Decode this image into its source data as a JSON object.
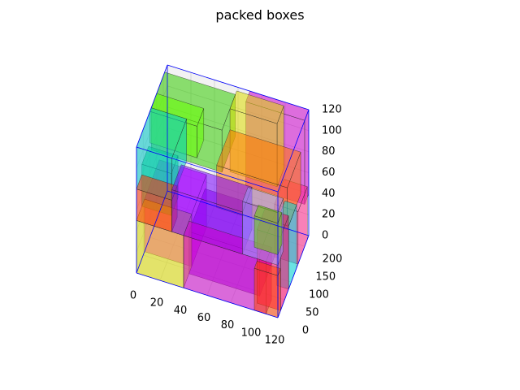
{
  "chart_data": {
    "type": "3d-boxes",
    "title": "packed boxes",
    "axes": {
      "x": {
        "range": [
          0,
          120
        ],
        "ticks": [
          0,
          20,
          40,
          60,
          80,
          100,
          120
        ]
      },
      "y": {
        "range": [
          0,
          230
        ],
        "ticks": [
          0,
          50,
          100,
          150,
          200
        ]
      },
      "z": {
        "range": [
          0,
          120
        ],
        "ticks": [
          0,
          20,
          40,
          60,
          80,
          100,
          120
        ]
      }
    },
    "container": {
      "size": [
        120,
        230,
        120
      ],
      "edge_color": "#0000ff"
    },
    "grid": true,
    "boxes": [
      {
        "origin": [
          0,
          0,
          0
        ],
        "size": [
          40,
          60,
          50
        ],
        "color": "#dddd00"
      },
      {
        "origin": [
          0,
          60,
          0
        ],
        "size": [
          40,
          110,
          50
        ],
        "color": "#ff00ff"
      },
      {
        "origin": [
          40,
          0,
          0
        ],
        "size": [
          70,
          40,
          50
        ],
        "color": "#cc00cc"
      },
      {
        "origin": [
          40,
          40,
          0
        ],
        "size": [
          60,
          120,
          40
        ],
        "color": "#9900dd"
      },
      {
        "origin": [
          100,
          0,
          0
        ],
        "size": [
          20,
          20,
          40
        ],
        "color": "#ff4400"
      },
      {
        "origin": [
          100,
          20,
          0
        ],
        "size": [
          20,
          60,
          70
        ],
        "color": "#ff0066"
      },
      {
        "origin": [
          110,
          80,
          0
        ],
        "size": [
          10,
          60,
          60
        ],
        "color": "#00dddd"
      },
      {
        "origin": [
          100,
          150,
          0
        ],
        "size": [
          20,
          70,
          50
        ],
        "color": "#ff2288"
      },
      {
        "origin": [
          0,
          0,
          50
        ],
        "size": [
          30,
          40,
          30
        ],
        "color": "#ff3300"
      },
      {
        "origin": [
          0,
          40,
          50
        ],
        "size": [
          25,
          50,
          40
        ],
        "color": "#00cc66"
      },
      {
        "origin": [
          0,
          0,
          80
        ],
        "size": [
          30,
          110,
          40
        ],
        "color": "#00cccc"
      },
      {
        "origin": [
          30,
          0,
          50
        ],
        "size": [
          60,
          70,
          40
        ],
        "color": "#7700ff"
      },
      {
        "origin": [
          90,
          0,
          50
        ],
        "size": [
          30,
          40,
          50
        ],
        "color": "#9999ff"
      },
      {
        "origin": [
          60,
          70,
          60
        ],
        "size": [
          60,
          100,
          40
        ],
        "color": "#ff7700"
      },
      {
        "origin": [
          100,
          0,
          60
        ],
        "size": [
          20,
          30,
          30
        ],
        "color": "#66cc00"
      },
      {
        "origin": [
          0,
          110,
          80
        ],
        "size": [
          60,
          100,
          40
        ],
        "color": "#33cc00"
      },
      {
        "origin": [
          0,
          100,
          90
        ],
        "size": [
          40,
          50,
          30
        ],
        "color": "#66ff00"
      },
      {
        "origin": [
          60,
          170,
          60
        ],
        "size": [
          40,
          50,
          60
        ],
        "color": "#dddd00"
      },
      {
        "origin": [
          70,
          200,
          40
        ],
        "size": [
          50,
          30,
          80
        ],
        "color": "#cc00cc"
      }
    ]
  }
}
